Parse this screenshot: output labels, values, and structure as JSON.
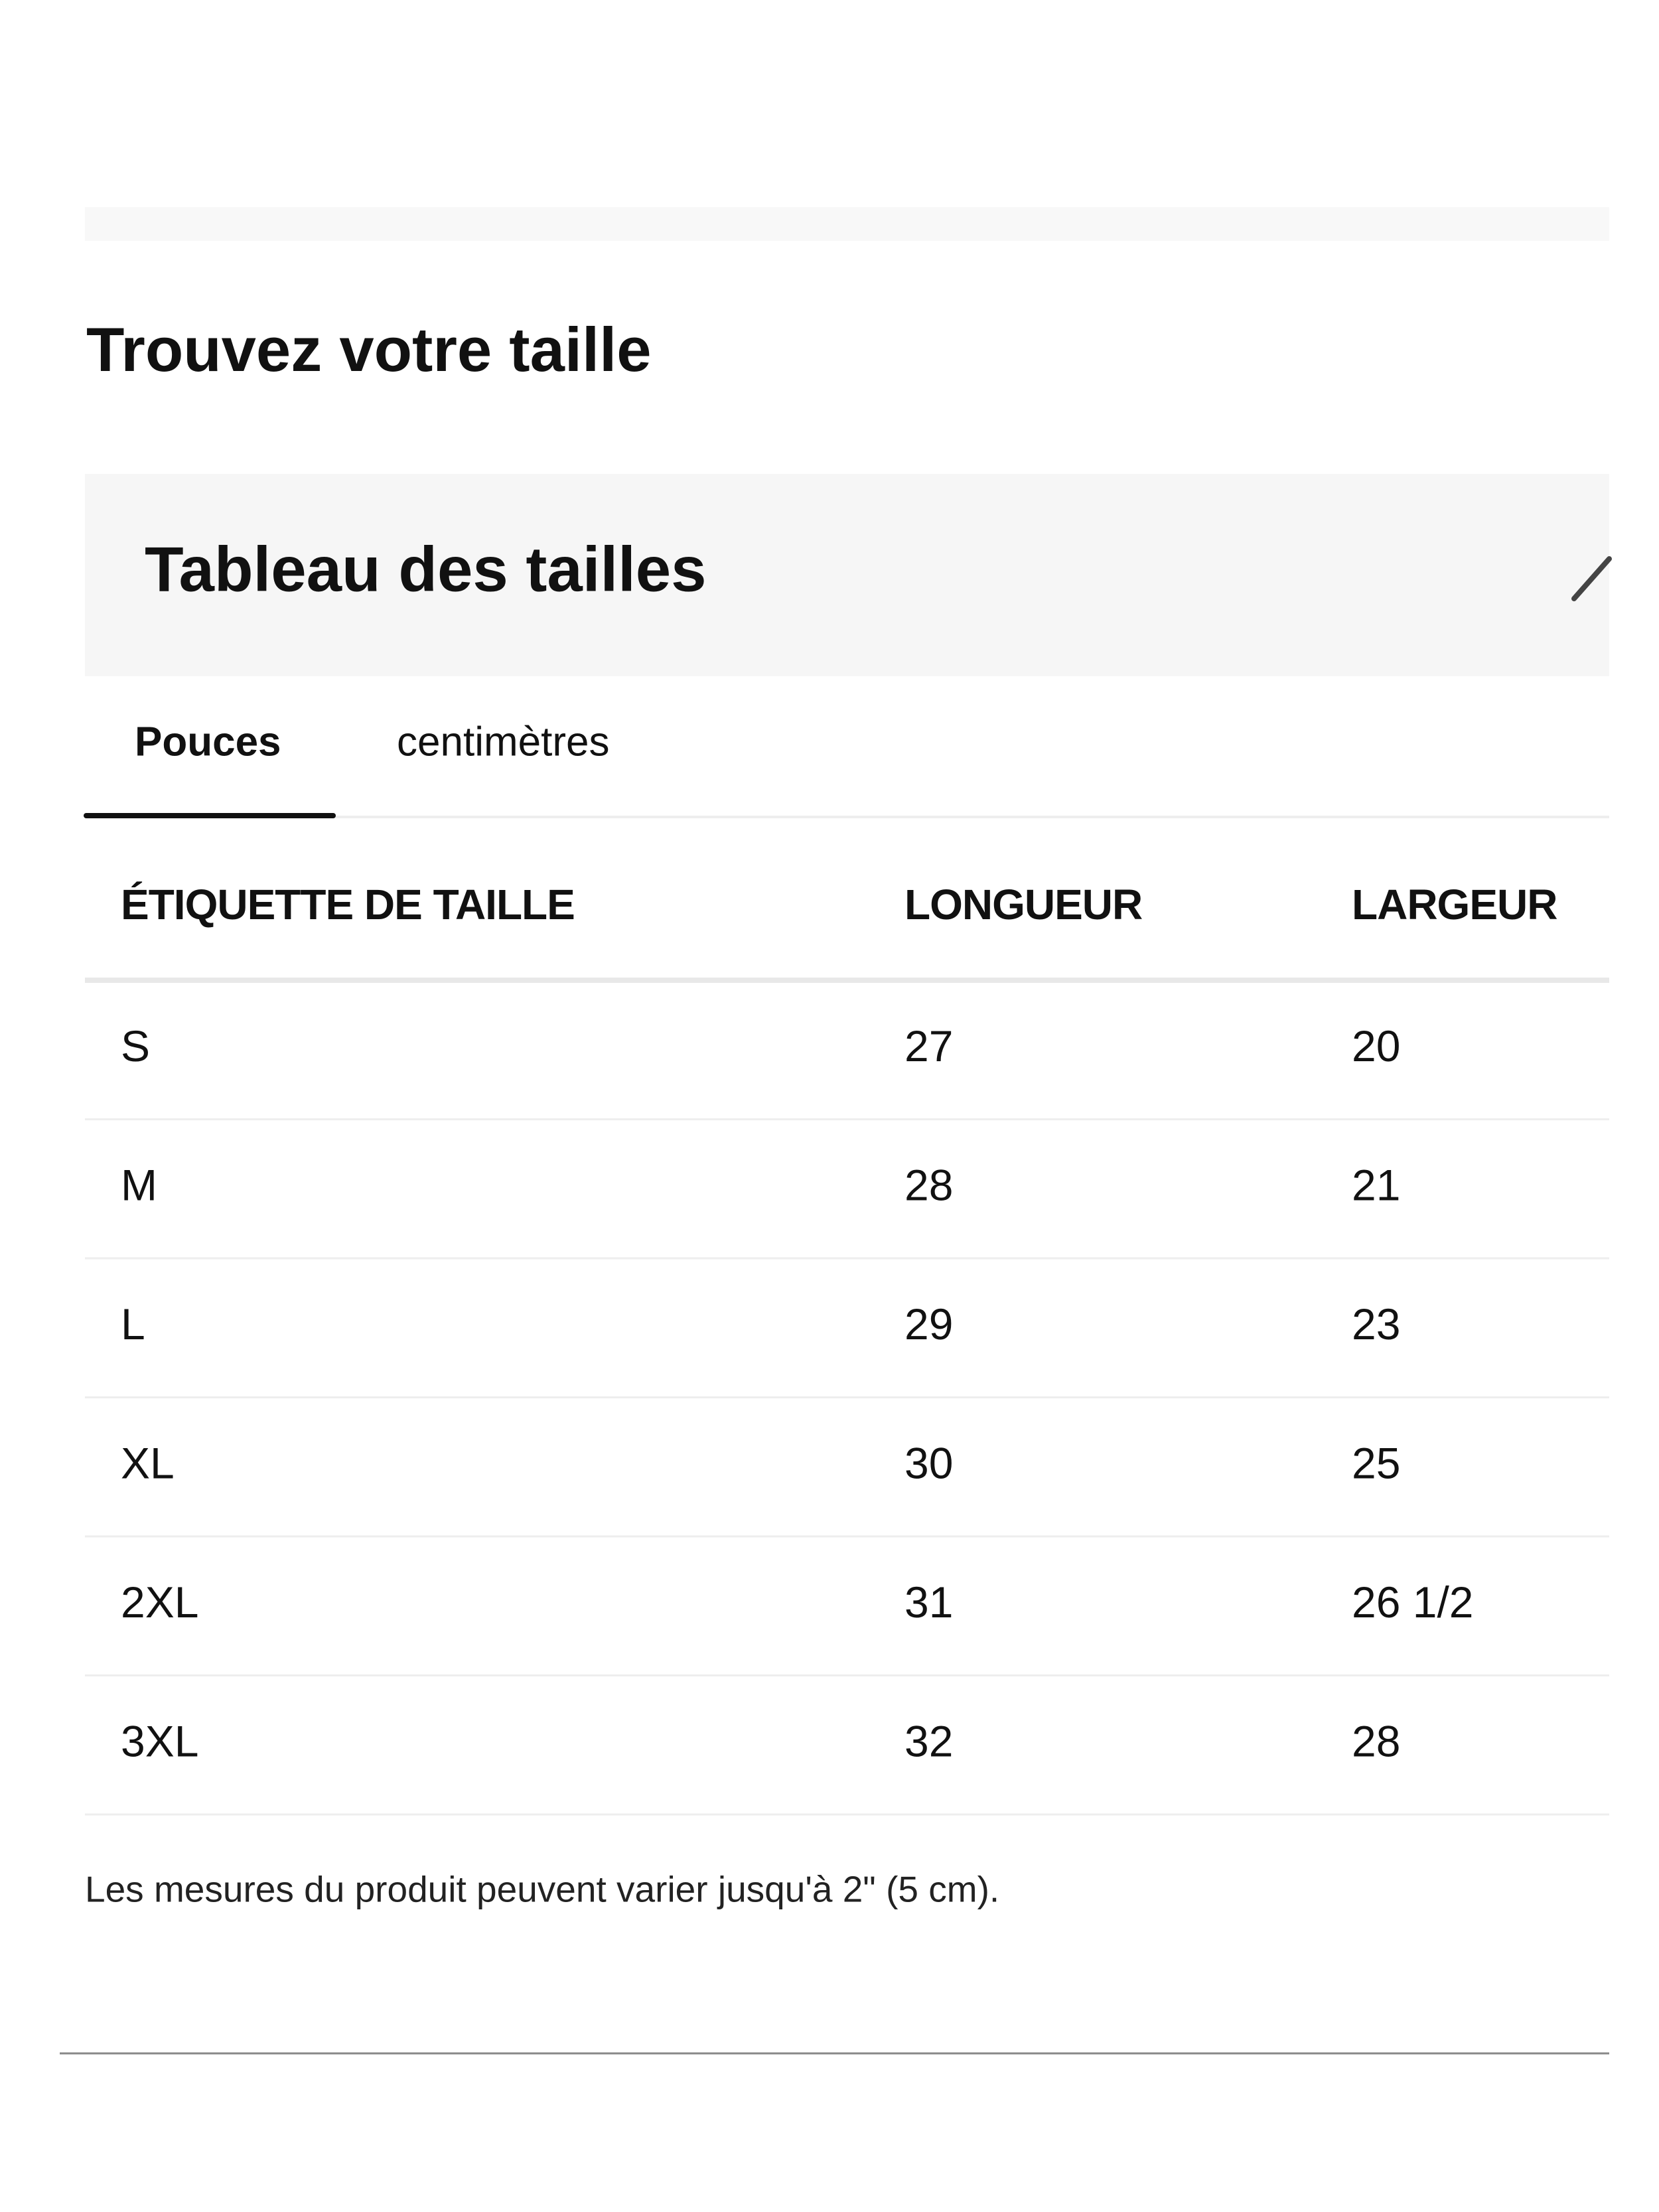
{
  "heading": "Trouvez votre taille",
  "panel": {
    "title": "Tableau des tailles"
  },
  "tabs": [
    "Pouces",
    "centimètres"
  ],
  "table": {
    "headers": [
      "ÉTIQUETTE DE TAILLE",
      "LONGUEUR",
      "LARGEUR"
    ],
    "rows": [
      [
        "S",
        "27",
        "20"
      ],
      [
        "M",
        "28",
        "21"
      ],
      [
        "L",
        "29",
        "23"
      ],
      [
        "XL",
        "30",
        "25"
      ],
      [
        "2XL",
        "31",
        "26 1/2"
      ],
      [
        "3XL",
        "32",
        "28"
      ]
    ]
  },
  "note": "Les mesures du produit peuvent varier jusqu'à 2\" (5 cm)."
}
